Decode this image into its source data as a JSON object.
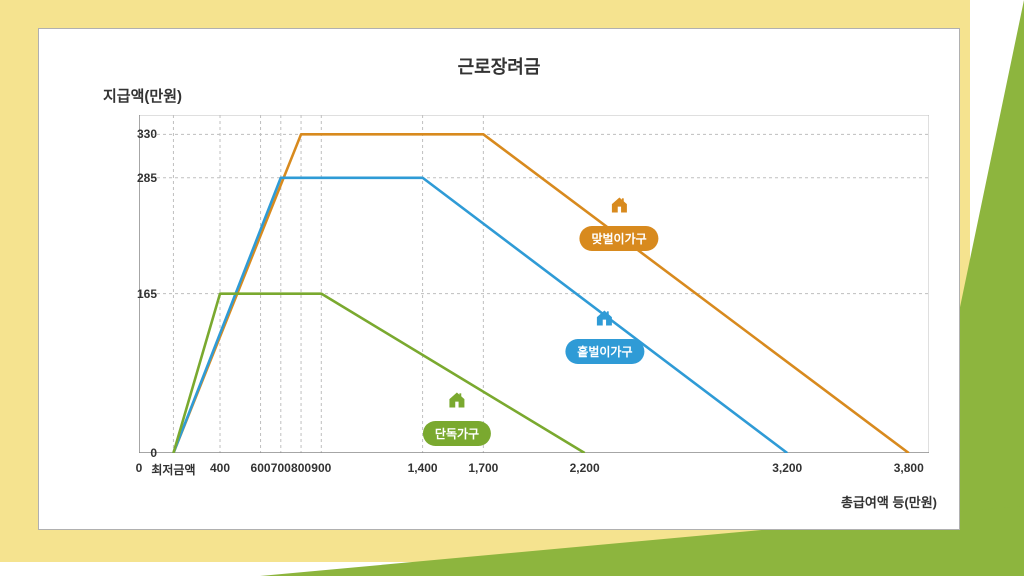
{
  "title": "근로장려금",
  "ylabel": "지급액(만원)",
  "xlabel": "총급여액 등(만원)",
  "chart": {
    "type": "line",
    "xlim": [
      0,
      3900
    ],
    "ylim": [
      0,
      350
    ],
    "yticks": [
      0,
      165,
      285,
      330
    ],
    "xticks_num": [
      0,
      400,
      600,
      700,
      800,
      900,
      1400,
      1700,
      2200,
      3200,
      3800
    ],
    "xticks_labels": [
      "0",
      "최저금액",
      "400",
      "600",
      "700",
      "800",
      "900",
      "1,400",
      "1,700",
      "2,200",
      "3,200",
      "3,800"
    ],
    "xticks_pos": [
      0,
      170,
      400,
      600,
      700,
      800,
      900,
      1400,
      1700,
      2200,
      3200,
      3800
    ],
    "axis_color": "#888888",
    "grid_color": "#bfbfbf",
    "grid_dash": "3,3",
    "background_color": "#ffffff",
    "vgrid_x": [
      170,
      400,
      600,
      700,
      800,
      900,
      1400,
      1700
    ],
    "line_width": 2.6,
    "series": [
      {
        "id": "dual",
        "label": "맞벌이가구",
        "color": "#d88a1e",
        "points": [
          [
            170,
            0
          ],
          [
            800,
            330
          ],
          [
            1700,
            330
          ],
          [
            3800,
            0
          ]
        ],
        "legend_x": 2370,
        "legend_y": 232
      },
      {
        "id": "single_earner",
        "label": "홑벌이가구",
        "color": "#2f9bd6",
        "points": [
          [
            170,
            0
          ],
          [
            700,
            285
          ],
          [
            1400,
            285
          ],
          [
            3200,
            0
          ]
        ],
        "legend_x": 2300,
        "legend_y": 115
      },
      {
        "id": "solo",
        "label": "단독가구",
        "color": "#7aa92f",
        "points": [
          [
            170,
            0
          ],
          [
            400,
            165
          ],
          [
            900,
            165
          ],
          [
            2200,
            0
          ]
        ],
        "legend_x": 1570,
        "legend_y": 30
      }
    ]
  },
  "frame_colors": {
    "yellow": "#f5e38f",
    "green": "#8db53e",
    "card_border": "#b0b0b0"
  }
}
